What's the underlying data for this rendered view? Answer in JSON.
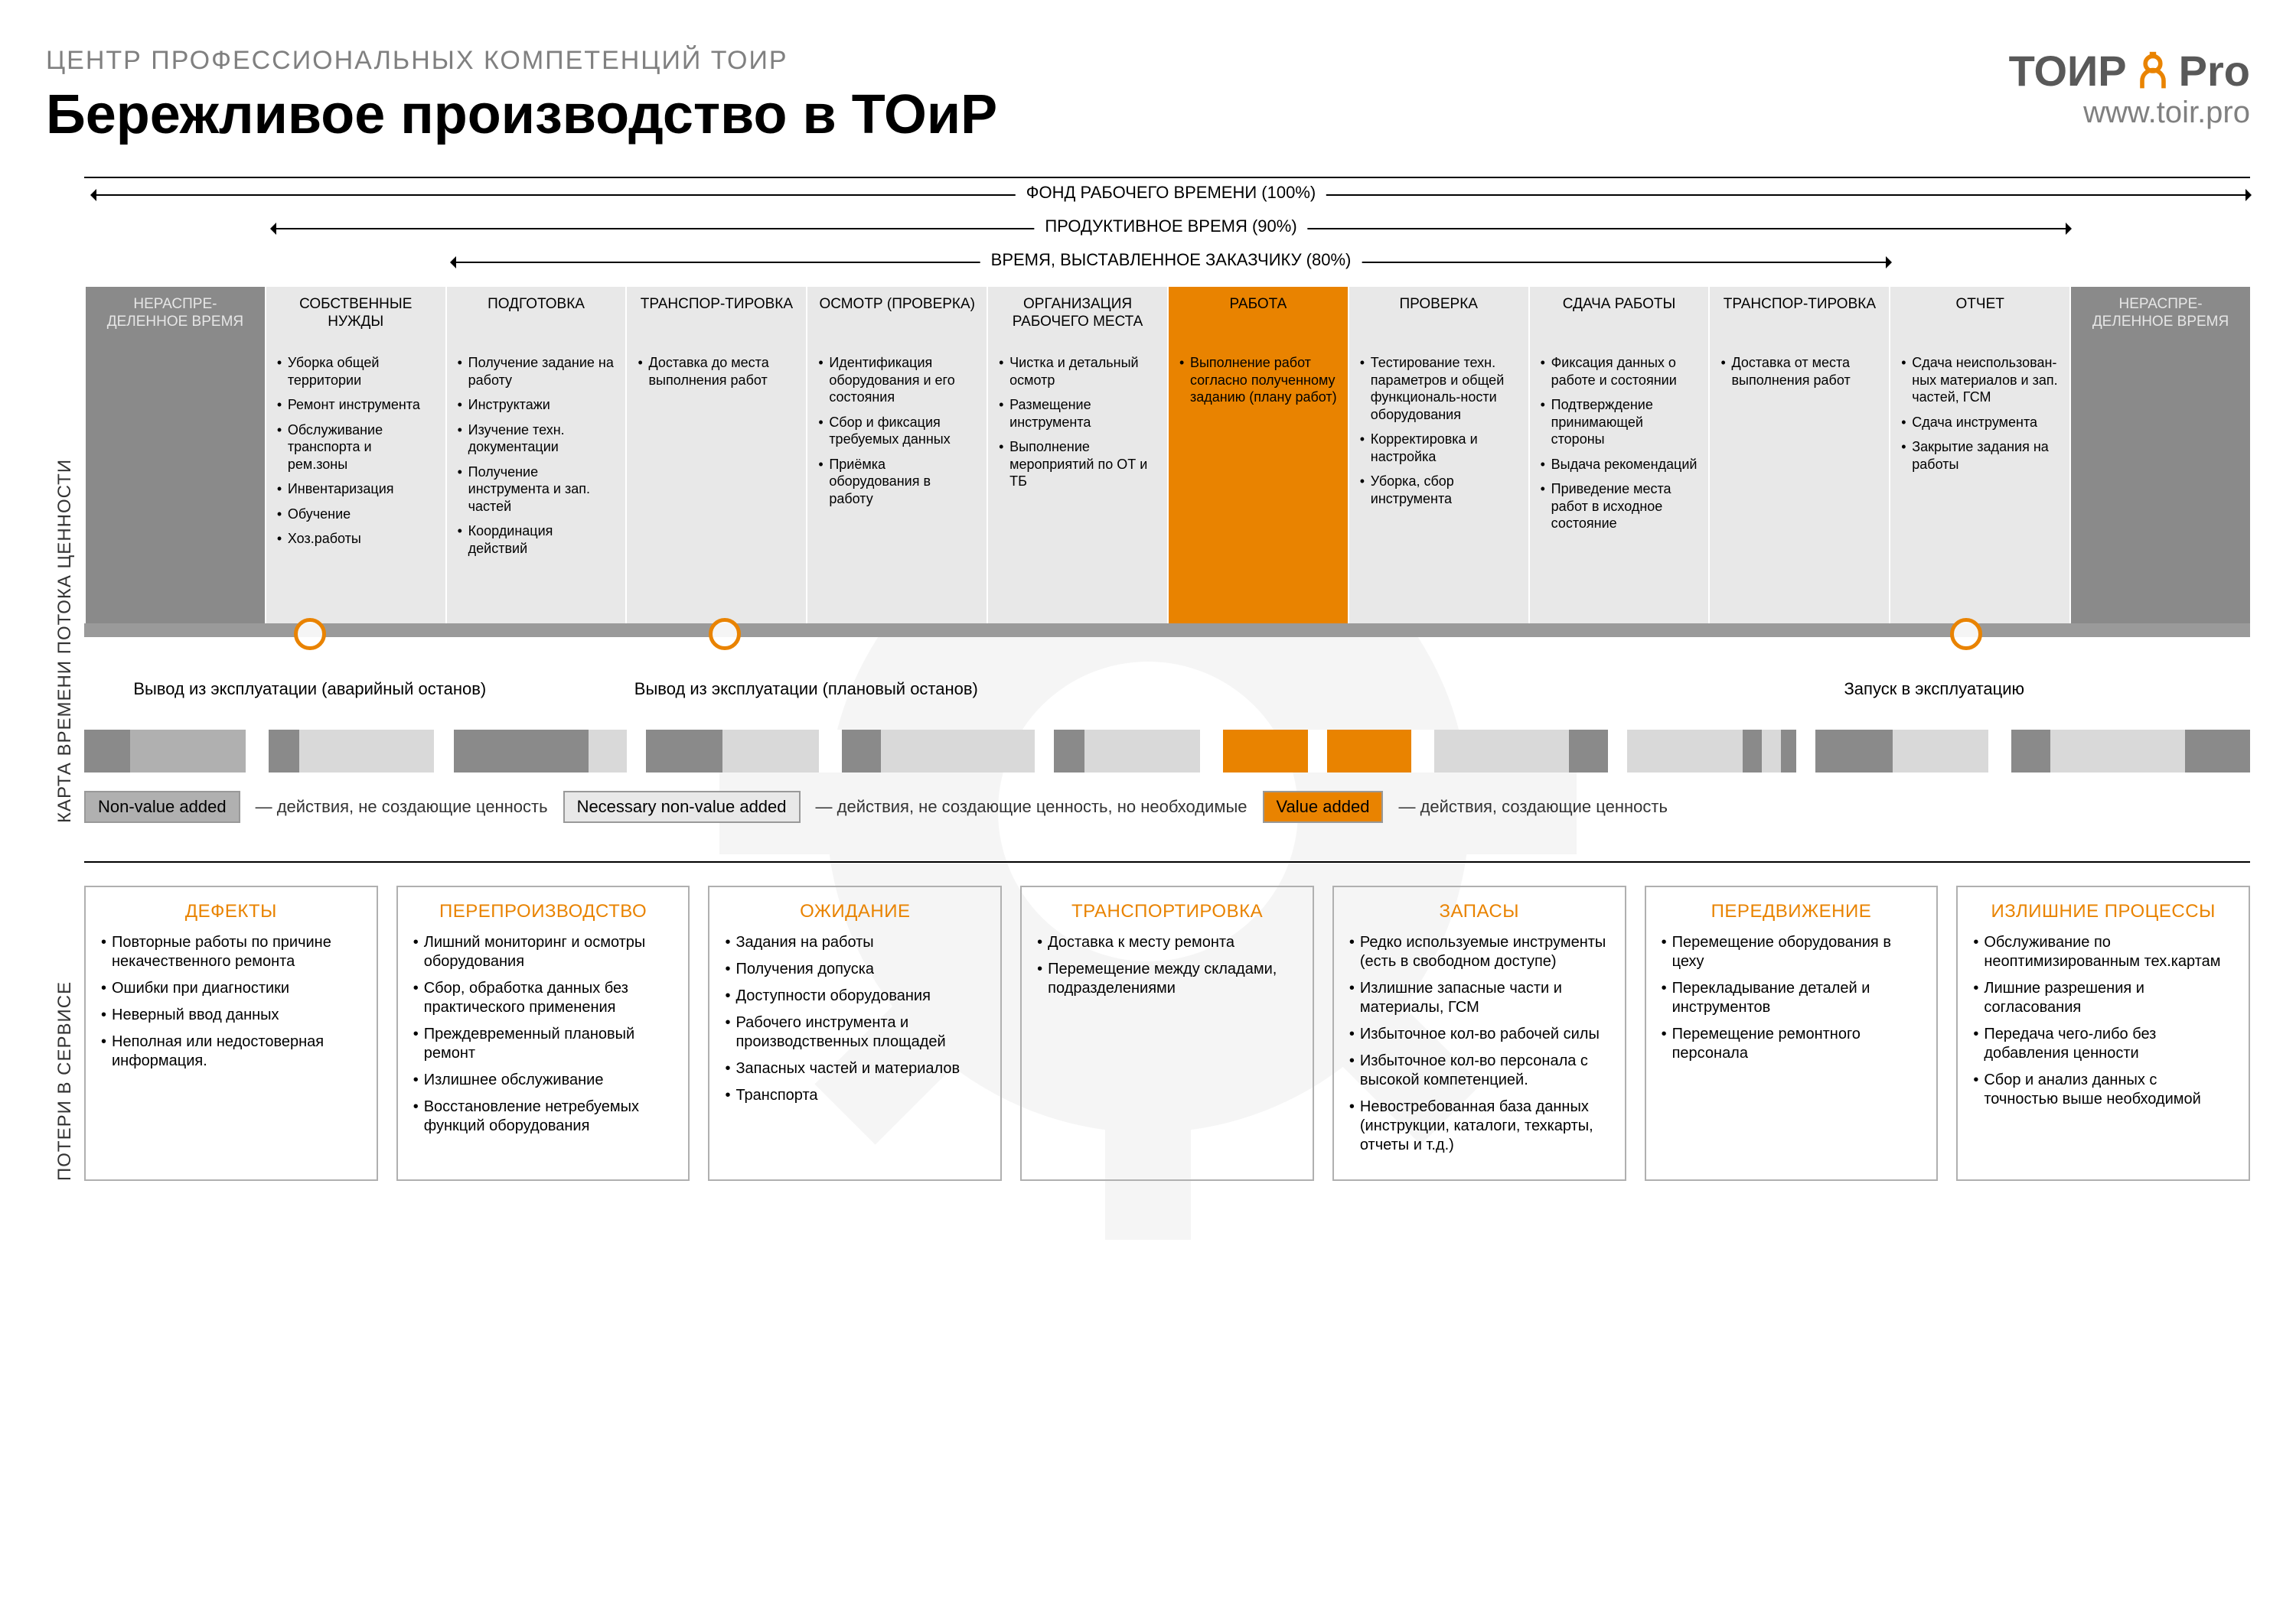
{
  "header": {
    "subtitle": "ЦЕНТР ПРОФЕССИОНАЛЬНЫХ КОМПЕТЕНЦИЙ ТОиР",
    "title": "Бережливое производство в ТОиР",
    "logo_left": "ТОИР",
    "logo_right": "Pro",
    "website": "www.toir.pro"
  },
  "colors": {
    "orange": "#e98300",
    "grey_dark": "#8a8a8a",
    "grey_light": "#e8e8e8",
    "grey_mid": "#b0b0b0"
  },
  "section1_label": "КАРТА ВРЕМЕНИ ПОТОКА ЦЕННОСТИ",
  "section2_label": "ПОТЕРИ  В  СЕРВИСЕ",
  "arrows": [
    {
      "label": "ФОНД РАБОЧЕГО ВРЕМЕНИ (100%)",
      "left_pct": 0,
      "width_pct": 100
    },
    {
      "label": "ПРОДУКТИВНОЕ ВРЕМЯ (90%)",
      "left_pct": 8.33,
      "width_pct": 83.33
    },
    {
      "label": "ВРЕМЯ, ВЫСТАВЛЕННОЕ ЗАКАЗЧИКУ (80%)",
      "left_pct": 16.67,
      "width_pct": 66.67
    }
  ],
  "columns": [
    {
      "type": "dark",
      "head": "НЕРАСПРЕ-ДЕЛЕННОЕ ВРЕМЯ",
      "items": []
    },
    {
      "type": "light",
      "head": "СОБСТВЕННЫЕ НУЖДЫ",
      "items": [
        "Уборка общей территории",
        "Ремонт инструмента",
        "Обслуживание транспорта и рем.зоны",
        "Инвентаризация",
        "Обучение",
        "Хоз.работы"
      ]
    },
    {
      "type": "light",
      "head": "ПОДГОТОВКА",
      "items": [
        "Получение задание на работу",
        "Инструктажи",
        "Изучение техн. документации",
        "Получение инструмента и зап. частей",
        "Координация действий"
      ]
    },
    {
      "type": "light",
      "head": "ТРАНСПОР-ТИРОВКА",
      "items": [
        "Доставка до места выполнения работ"
      ]
    },
    {
      "type": "light",
      "head": "ОСМОТР (ПРОВЕРКА)",
      "items": [
        "Идентификация оборудования и его состояния",
        "Сбор и фиксация требуемых данных",
        "Приёмка оборудования в работу"
      ]
    },
    {
      "type": "light",
      "head": "ОРГАНИЗАЦИЯ РАБОЧЕГО МЕСТА",
      "items": [
        "Чистка и детальный осмотр",
        "Размещение инструмента",
        "Выполнение мероприятий по ОТ и ТБ"
      ]
    },
    {
      "type": "orange",
      "head": "РАБОТА",
      "items": [
        "Выполнение работ согласно полученному заданию (плану работ)"
      ]
    },
    {
      "type": "light",
      "head": "ПРОВЕРКА",
      "items": [
        "Тестирование техн. параметров и общей функциональ-ности оборудования",
        "Корректировка и настройка",
        "Уборка, сбор инструмента"
      ]
    },
    {
      "type": "light",
      "head": "СДАЧА РАБОТЫ",
      "items": [
        "Фиксация данных о работе и состоянии",
        "Подтверждение принимающей стороны",
        "Выдача рекомендаций",
        "Приведение места работ в исходное состояние"
      ]
    },
    {
      "type": "light",
      "head": "ТРАНСПОР-ТИРОВКА",
      "items": [
        "Доставка от места выполнения работ"
      ]
    },
    {
      "type": "light",
      "head": "ОТЧЕТ",
      "items": [
        "Сдача неиспользован-ных материалов и зап. частей, ГСМ",
        "Сдача инструмента",
        "Закрытие задания на работы"
      ]
    },
    {
      "type": "dark",
      "head": "НЕРАСПРЕ-ДЕЛЕННОЕ ВРЕМЯ",
      "items": []
    }
  ],
  "stops": [
    {
      "label": "Вывод из эксплуатации (аварийный останов)",
      "flex": 2.5,
      "align": "center",
      "pos_pct": 50
    },
    {
      "label": "Вывод из эксплуатации (плановый останов)",
      "flex": 3,
      "align": "center",
      "pos_pct": 35
    },
    {
      "label": "",
      "flex": 3,
      "align": "center"
    },
    {
      "label": "Запуск в эксплуатацию",
      "flex": 3.5,
      "align": "center",
      "pos_pct": 55
    }
  ],
  "barcode": [
    {
      "w": 1.2,
      "c": "#8a8a8a"
    },
    {
      "w": 3.0,
      "c": "#b0b0b0"
    },
    {
      "w": 0.6,
      "c": "#fff"
    },
    {
      "w": 0.8,
      "c": "#8a8a8a"
    },
    {
      "w": 3.5,
      "c": "#d9d9d9"
    },
    {
      "w": 0.5,
      "c": "#fff"
    },
    {
      "w": 3.5,
      "c": "#8a8a8a"
    },
    {
      "w": 1.0,
      "c": "#d9d9d9"
    },
    {
      "w": 0.5,
      "c": "#fff"
    },
    {
      "w": 2.0,
      "c": "#8a8a8a"
    },
    {
      "w": 2.5,
      "c": "#d9d9d9"
    },
    {
      "w": 0.6,
      "c": "#fff"
    },
    {
      "w": 1.0,
      "c": "#8a8a8a"
    },
    {
      "w": 4.0,
      "c": "#d9d9d9"
    },
    {
      "w": 0.5,
      "c": "#fff"
    },
    {
      "w": 0.8,
      "c": "#8a8a8a"
    },
    {
      "w": 3.0,
      "c": "#d9d9d9"
    },
    {
      "w": 0.6,
      "c": "#fff"
    },
    {
      "w": 2.2,
      "c": "#e98300"
    },
    {
      "w": 0.5,
      "c": "#fff"
    },
    {
      "w": 2.2,
      "c": "#e98300"
    },
    {
      "w": 0.6,
      "c": "#fff"
    },
    {
      "w": 3.5,
      "c": "#d9d9d9"
    },
    {
      "w": 1.0,
      "c": "#8a8a8a"
    },
    {
      "w": 0.5,
      "c": "#fff"
    },
    {
      "w": 3.0,
      "c": "#d9d9d9"
    },
    {
      "w": 0.5,
      "c": "#8a8a8a"
    },
    {
      "w": 0.5,
      "c": "#d9d9d9"
    },
    {
      "w": 0.4,
      "c": "#8a8a8a"
    },
    {
      "w": 0.5,
      "c": "#fff"
    },
    {
      "w": 2.0,
      "c": "#8a8a8a"
    },
    {
      "w": 2.5,
      "c": "#d9d9d9"
    },
    {
      "w": 0.6,
      "c": "#fff"
    },
    {
      "w": 1.0,
      "c": "#8a8a8a"
    },
    {
      "w": 3.5,
      "c": "#d9d9d9"
    },
    {
      "w": 0.5,
      "c": "#8a8a8a"
    },
    {
      "w": 1.2,
      "c": "#8a8a8a"
    }
  ],
  "legend": [
    {
      "box": "Non-value added",
      "text": "— действия, не создающие ценность",
      "bg": "#b0b0b0"
    },
    {
      "box": "Necessary non-value added",
      "text": "— действия, не создающие ценность, но необходимые",
      "bg": "#e8e8e8"
    },
    {
      "box": "Value added",
      "text": "— действия, создающие ценность",
      "bg": "#e98300"
    }
  ],
  "losses": [
    {
      "title": "ДЕФЕКТЫ",
      "items": [
        "Повторные работы по причине некачественного ремонта",
        "Ошибки при диагностики",
        "Неверный ввод данных",
        "Неполная или недостоверная информация."
      ]
    },
    {
      "title": "ПЕРЕПРОИЗВОДСТВО",
      "items": [
        "Лишний мониторинг и осмотры оборудования",
        "Сбор, обработка данных без практического применения",
        "Преждевременный плановый ремонт",
        "Излишнее обслуживание",
        "Восстановление нетребуемых функций оборудования"
      ]
    },
    {
      "title": "ОЖИДАНИЕ",
      "items": [
        "Задания на работы",
        "Получения допуска",
        "Доступности оборудования",
        "Рабочего инструмента и производственных площадей",
        "Запасных частей и материалов",
        "Транспорта"
      ]
    },
    {
      "title": "ТРАНСПОРТИРОВКА",
      "items": [
        "Доставка к месту ремонта",
        "Перемещение между складами, подразделениями"
      ]
    },
    {
      "title": "ЗАПАСЫ",
      "items": [
        "Редко используемые инструменты (есть в свободном доступе)",
        "Излишние запасные части и материалы, ГСМ",
        "Избыточное кол-во рабочей силы",
        "Избыточное кол-во персонала с высокой компетенцией.",
        "Невостребованная база данных (инструкции, каталоги, техкарты, отчеты и т.д.)"
      ]
    },
    {
      "title": "ПЕРЕДВИЖЕНИЕ",
      "items": [
        "Перемещение оборудования в цеху",
        "Перекладывание деталей и инструментов",
        "Перемещение ремонтного персонала"
      ]
    },
    {
      "title": "ИЗЛИШНИЕ ПРОЦЕССЫ",
      "items": [
        "Обслуживание по неоптимизированным тех.картам",
        "Лишние разрешения и согласования",
        "Передача чего-либо без добавления ценности",
        "Сбор и анализ данных с точностью выше необходимой"
      ]
    }
  ]
}
